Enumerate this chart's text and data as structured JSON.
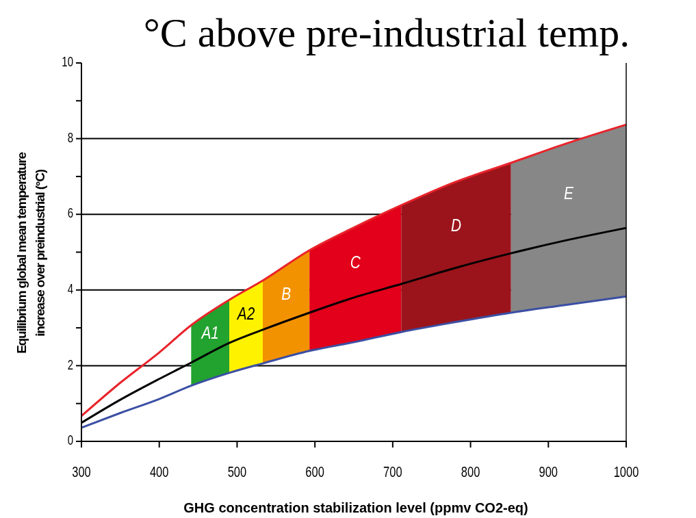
{
  "chart_data": {
    "type": "line",
    "title": "°C above pre-industrial temp.",
    "xlabel": "GHG concentration stabilization level (ppmv CO2-eq)",
    "ylabel": "Equilibrium global mean temperature\nincrease over preindustrial (°C)",
    "xlim": [
      300,
      1000
    ],
    "xticks": [
      300,
      400,
      500,
      600,
      700,
      800,
      900,
      1000
    ],
    "ylim": [
      0,
      10
    ],
    "yticks": [
      0,
      {
        "value": 1,
        "label": null
      },
      2,
      {
        "value": 3,
        "label": null
      },
      4,
      {
        "value": 5,
        "label": null
      },
      6,
      {
        "value": 7,
        "label": null
      },
      8,
      {
        "value": 9,
        "label": null
      },
      10
    ],
    "grid": "y",
    "marker": "none",
    "line_style": "solid",
    "bands": [
      {
        "axis": "x",
        "from": 441,
        "to": 490,
        "label": "A1",
        "color": "#22a22e"
      },
      {
        "axis": "x",
        "from": 490,
        "to": 533,
        "label": "A2",
        "color": "#fff200"
      },
      {
        "axis": "x",
        "from": 533,
        "to": 593,
        "label": "B",
        "color": "#f39200"
      },
      {
        "axis": "x",
        "from": 593,
        "to": 711,
        "label": "C",
        "color": "#e2001a"
      },
      {
        "axis": "x",
        "from": 711,
        "to": 852,
        "label": "D",
        "color": "#9b141b"
      },
      {
        "axis": "x",
        "from": 852,
        "to": 1000,
        "label": "E",
        "color": "#878787"
      }
    ],
    "series": [
      {
        "color": "#e8232a",
        "x": [
          300,
          350,
          400,
          441,
          490,
          533,
          593,
          650,
          711,
          780,
          852,
          920,
          1000
        ],
        "values": [
          0.67,
          1.55,
          2.35,
          3.07,
          3.74,
          4.25,
          5.05,
          5.65,
          6.24,
          6.85,
          7.36,
          7.85,
          8.37
        ]
      },
      {
        "color": "#000000",
        "x": [
          300,
          350,
          400,
          441,
          490,
          533,
          593,
          650,
          711,
          780,
          852,
          920,
          1000
        ],
        "values": [
          0.49,
          1.1,
          1.65,
          2.08,
          2.6,
          2.95,
          3.4,
          3.8,
          4.16,
          4.58,
          4.97,
          5.3,
          5.64
        ]
      },
      {
        "color": "#3b4fa3",
        "x": [
          300,
          350,
          400,
          441,
          490,
          533,
          593,
          650,
          711,
          780,
          852,
          920,
          1000
        ],
        "values": [
          0.36,
          0.75,
          1.12,
          1.47,
          1.81,
          2.06,
          2.39,
          2.62,
          2.89,
          3.15,
          3.4,
          3.6,
          3.83
        ]
      }
    ]
  }
}
